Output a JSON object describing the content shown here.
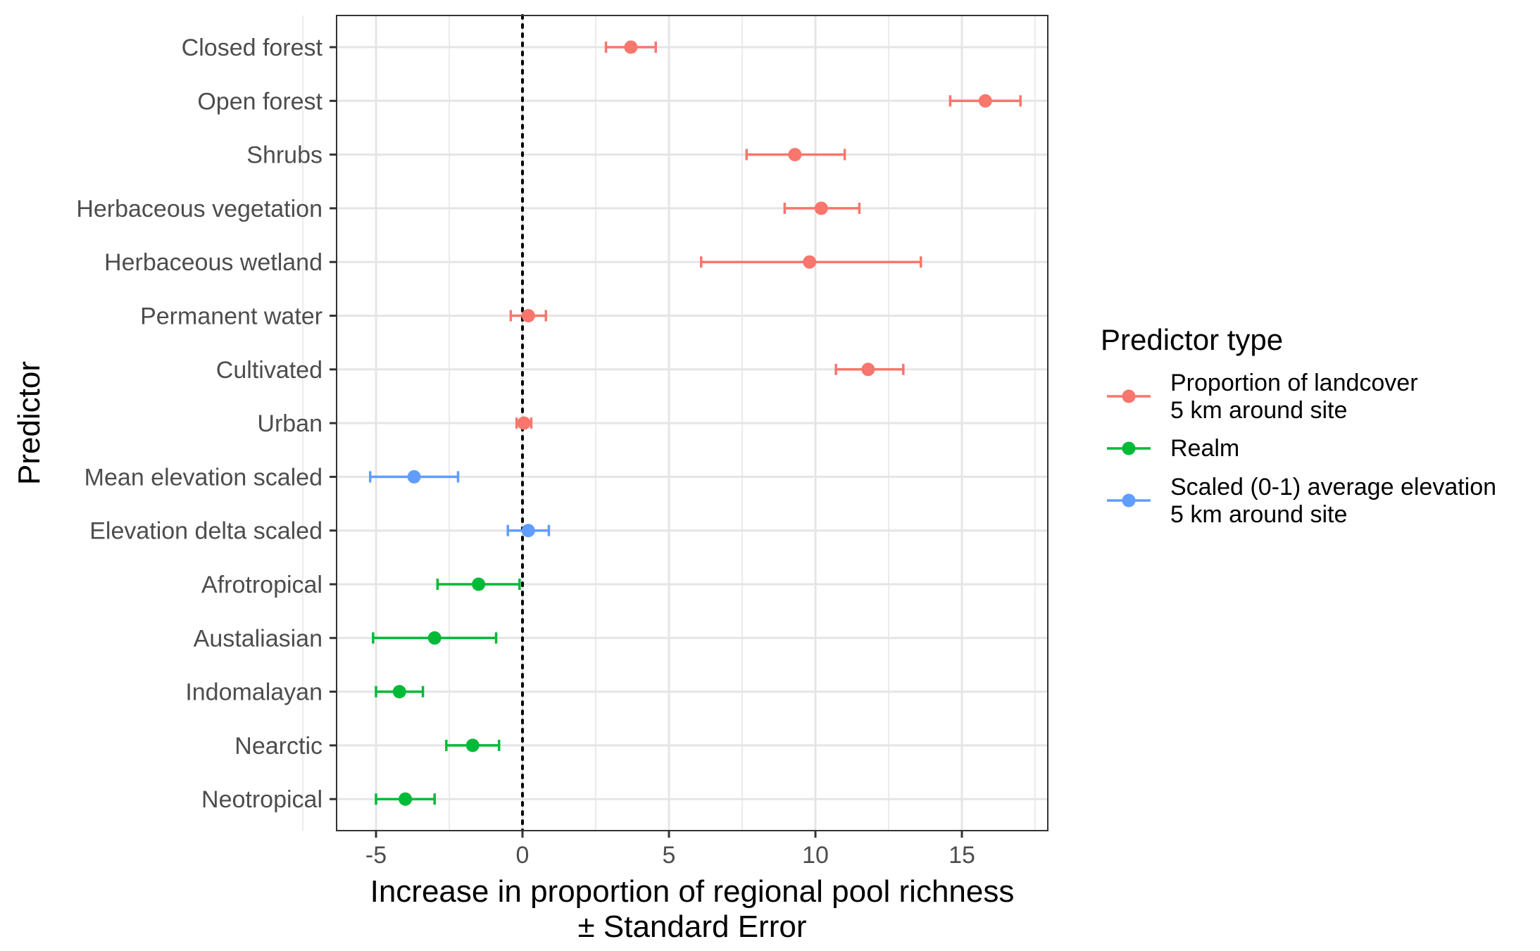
{
  "chart_data": {
    "type": "scatter",
    "subtype": "dot-and-whisker",
    "title": "",
    "xlabel_lines": [
      "Increase in proportion of regional pool richness",
      "± Standard Error"
    ],
    "ylabel": "Predictor",
    "xlim": [
      -6.2,
      18.2
    ],
    "xticks": [
      -5,
      0,
      5,
      10,
      15
    ],
    "xtick_labels": [
      "-5",
      "0",
      "5",
      "10",
      "15"
    ],
    "grid": true,
    "reference_line": {
      "x": 0,
      "style": "dotted",
      "color": "#000000"
    },
    "legend": {
      "title": "Predictor type",
      "position": "right",
      "entries": [
        {
          "key": "landcover",
          "lines": [
            "Proportion of landcover",
            "5 km around site"
          ],
          "color": "#F8766D"
        },
        {
          "key": "realm",
          "lines": [
            "Realm"
          ],
          "color": "#00BA38"
        },
        {
          "key": "elevation",
          "lines": [
            "Scaled (0-1) average elevation",
            "5 km around site"
          ],
          "color": "#619CFF"
        }
      ]
    },
    "points": [
      {
        "label": "Closed forest",
        "group": "landcover",
        "estimate": 3.7,
        "lower": 2.85,
        "upper": 4.55
      },
      {
        "label": "Open forest",
        "group": "landcover",
        "estimate": 15.8,
        "lower": 14.6,
        "upper": 17.0
      },
      {
        "label": "Shrubs",
        "group": "landcover",
        "estimate": 9.3,
        "lower": 7.65,
        "upper": 11.0
      },
      {
        "label": "Herbaceous vegetation",
        "group": "landcover",
        "estimate": 10.2,
        "lower": 8.95,
        "upper": 11.5
      },
      {
        "label": "Herbaceous wetland",
        "group": "landcover",
        "estimate": 9.8,
        "lower": 6.1,
        "upper": 13.6
      },
      {
        "label": "Permanent water",
        "group": "landcover",
        "estimate": 0.2,
        "lower": -0.4,
        "upper": 0.8
      },
      {
        "label": "Cultivated",
        "group": "landcover",
        "estimate": 11.8,
        "lower": 10.7,
        "upper": 13.0
      },
      {
        "label": "Urban",
        "group": "landcover",
        "estimate": 0.05,
        "lower": -0.2,
        "upper": 0.3
      },
      {
        "label": "Mean elevation scaled",
        "group": "elevation",
        "estimate": -3.7,
        "lower": -5.2,
        "upper": -2.2
      },
      {
        "label": "Elevation delta scaled",
        "group": "elevation",
        "estimate": 0.2,
        "lower": -0.5,
        "upper": 0.9
      },
      {
        "label": "Afrotropical",
        "group": "realm",
        "estimate": -1.5,
        "lower": -2.9,
        "upper": -0.1
      },
      {
        "label": "Austaliasian",
        "group": "realm",
        "estimate": -3.0,
        "lower": -5.1,
        "upper": -0.9
      },
      {
        "label": "Indomalayan",
        "group": "realm",
        "estimate": -4.2,
        "lower": -5.0,
        "upper": -3.4
      },
      {
        "label": "Nearctic",
        "group": "realm",
        "estimate": -1.7,
        "lower": -2.6,
        "upper": -0.8
      },
      {
        "label": "Neotropical",
        "group": "realm",
        "estimate": -4.0,
        "lower": -5.0,
        "upper": -3.0
      }
    ]
  }
}
